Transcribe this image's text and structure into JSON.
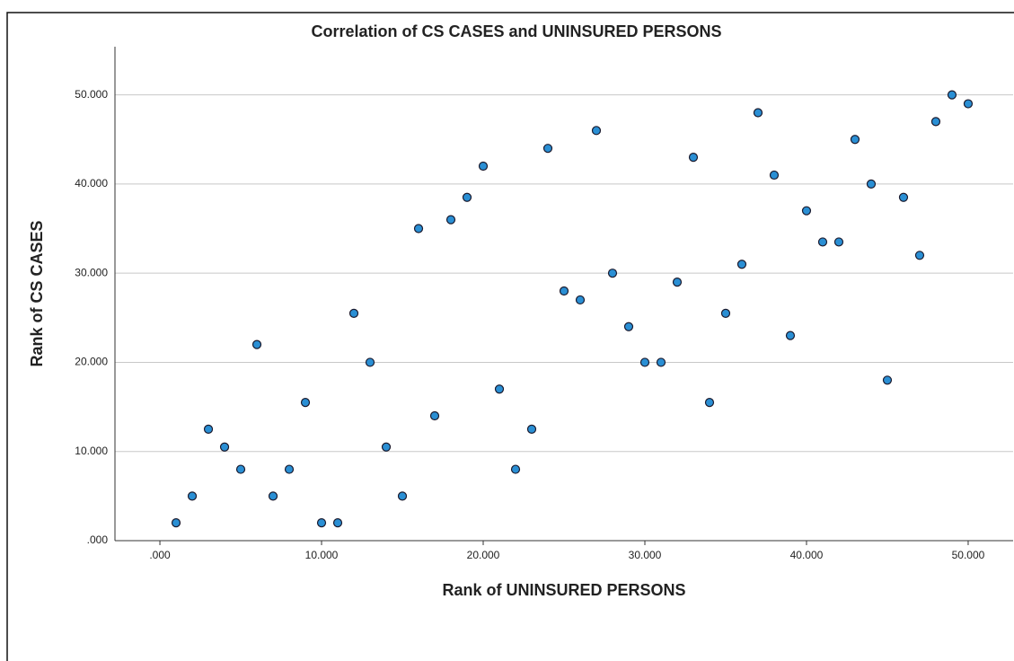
{
  "chart_data": {
    "type": "scatter",
    "title": "Correlation of CS CASES and UNINSURED PERSONS",
    "x_label": "Rank of UNINSURED PERSONS",
    "y_label": "Rank of CS CASES",
    "x": [
      1,
      2,
      3,
      4,
      5,
      6,
      7,
      8,
      9,
      10,
      11,
      12,
      13,
      14,
      15,
      16,
      17,
      18,
      19,
      20,
      21,
      22,
      23,
      24,
      25,
      26,
      27,
      28,
      29,
      30,
      31,
      32,
      33,
      34,
      35,
      36,
      37,
      38,
      39,
      40,
      41,
      42,
      43,
      44,
      45,
      46,
      47,
      48,
      49,
      50
    ],
    "values": [
      2,
      5,
      12.5,
      10.5,
      8,
      22,
      5,
      8,
      15.5,
      2,
      2,
      25.5,
      20,
      10.5,
      5,
      35,
      14,
      36,
      38.5,
      42,
      17,
      8,
      12.5,
      44,
      28,
      27,
      46,
      30,
      24,
      20,
      20,
      29,
      43,
      15.5,
      25.5,
      31,
      48,
      41,
      23,
      37,
      33.5,
      33.5,
      45,
      40,
      18,
      38.5,
      32,
      47,
      50,
      49
    ],
    "color": "#2a8fd4",
    "xlim": [
      -2.78,
      52.78
    ],
    "ylim": [
      0,
      55.4
    ],
    "xticks": [
      {
        "value": 0,
        "label": ".000"
      },
      {
        "value": 10,
        "label": "10.000"
      },
      {
        "value": 20,
        "label": "20.000"
      },
      {
        "value": 30,
        "label": "30.000"
      },
      {
        "value": 40,
        "label": "40.000"
      },
      {
        "value": 50,
        "label": "50.000"
      }
    ],
    "yticks": [
      {
        "value": 0,
        "label": ".000"
      },
      {
        "value": 10,
        "label": "10.000"
      },
      {
        "value": 20,
        "label": "20.000"
      },
      {
        "value": 30,
        "label": "30.000"
      },
      {
        "value": 40,
        "label": "40.000"
      },
      {
        "value": 50,
        "label": "50.000"
      }
    ],
    "grid": true
  }
}
